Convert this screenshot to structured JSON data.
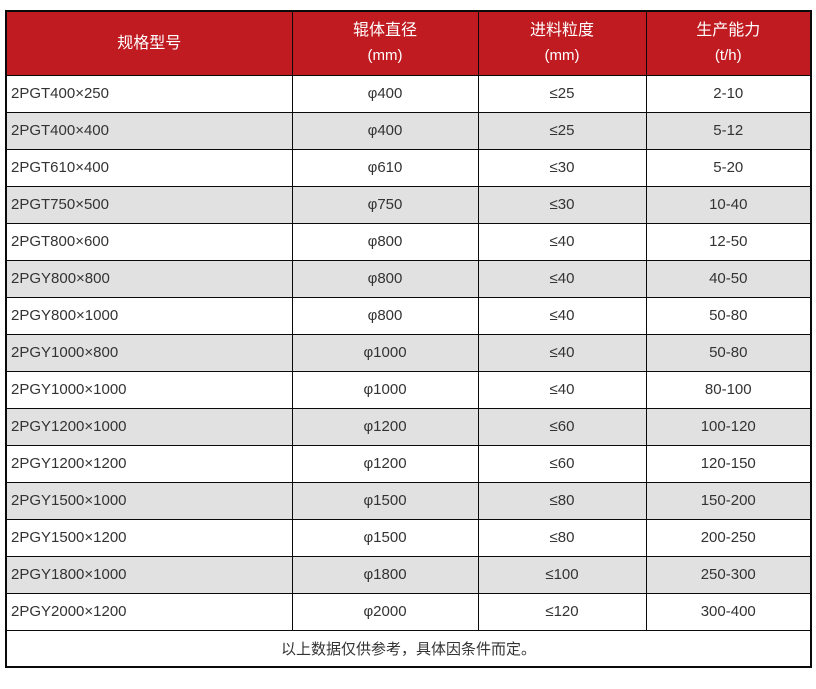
{
  "colors": {
    "header_bg": "#c01b20",
    "header_text": "#ffffff",
    "row_alt_bg": "#e1e1e1",
    "row_bg": "#ffffff",
    "body_text": "#333333",
    "border": "#0a0a0a"
  },
  "table": {
    "columns": [
      {
        "title": "规格型号",
        "unit": ""
      },
      {
        "title": "辊体直径",
        "unit": "(mm)"
      },
      {
        "title": "进料粒度",
        "unit": "(mm)"
      },
      {
        "title": "生产能力",
        "unit": "(t/h)"
      }
    ],
    "rows": [
      [
        "2PGT400×250",
        "φ400",
        "≤25",
        "2-10"
      ],
      [
        "2PGT400×400",
        "φ400",
        "≤25",
        "5-12"
      ],
      [
        "2PGT610×400",
        "φ610",
        "≤30",
        "5-20"
      ],
      [
        "2PGT750×500",
        "φ750",
        "≤30",
        "10-40"
      ],
      [
        "2PGT800×600",
        "φ800",
        "≤40",
        "12-50"
      ],
      [
        "2PGY800×800",
        "φ800",
        "≤40",
        "40-50"
      ],
      [
        "2PGY800×1000",
        "φ800",
        "≤40",
        "50-80"
      ],
      [
        "2PGY1000×800",
        "φ1000",
        "≤40",
        "50-80"
      ],
      [
        "2PGY1000×1000",
        "φ1000",
        "≤40",
        "80-100"
      ],
      [
        "2PGY1200×1000",
        "φ1200",
        "≤60",
        "100-120"
      ],
      [
        "2PGY1200×1200",
        "φ1200",
        "≤60",
        "120-150"
      ],
      [
        "2PGY1500×1000",
        "φ1500",
        "≤80",
        "150-200"
      ],
      [
        "2PGY1500×1200",
        "φ1500",
        "≤80",
        "200-250"
      ],
      [
        "2PGY1800×1000",
        "φ1800",
        "≤100",
        "250-300"
      ],
      [
        "2PGY2000×1200",
        "φ2000",
        "≤120",
        "300-400"
      ]
    ],
    "footnote": "以上数据仅供参考，具体因条件而定。"
  }
}
